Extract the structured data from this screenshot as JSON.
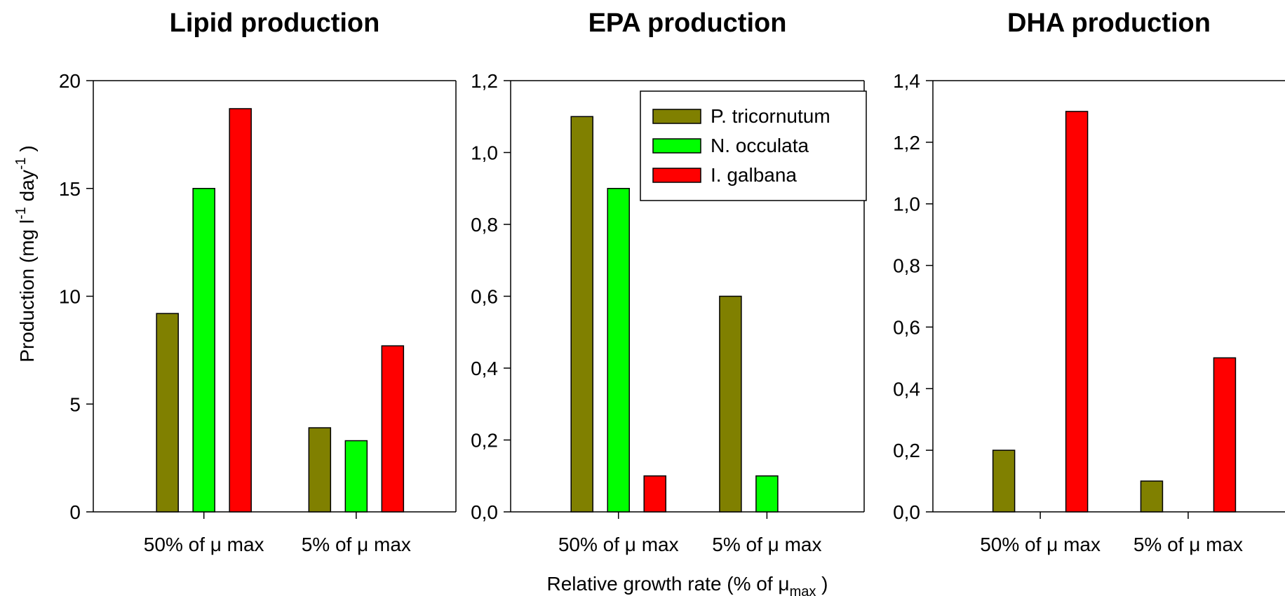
{
  "axis_labels": {
    "ylabel_prefix": "Production (mg l",
    "ylabel_sup1": "-1",
    "ylabel_mid": " day",
    "ylabel_sup2": "-1",
    "ylabel_suffix": " )",
    "xlabel_prefix": "Relative growth rate (% of μ",
    "xlabel_sub": "max",
    "xlabel_suffix": " )"
  },
  "legend": {
    "placement": "top-right of middle panel",
    "entries": [
      "P. tricornutum",
      "N. occulata",
      "I. galbana"
    ]
  },
  "colors": {
    "P. tricornutum": "#808000",
    "N. occulata": "#00ff00",
    "I. galbana": "#ff0000",
    "stroke": "#000000"
  },
  "chart_data": [
    {
      "type": "bar",
      "title": "Lipid production",
      "categories": [
        "50% of μ max",
        "5% of μ max"
      ],
      "series": [
        {
          "name": "P. tricornutum",
          "values": [
            9.2,
            3.9
          ]
        },
        {
          "name": "N. occulata",
          "values": [
            15.0,
            3.3
          ]
        },
        {
          "name": "I. galbana",
          "values": [
            18.7,
            7.7
          ]
        }
      ],
      "ylim": [
        0,
        20
      ],
      "yticks": [
        0,
        5,
        10,
        15,
        20
      ],
      "ytick_labels": [
        "0",
        "5",
        "10",
        "15",
        "20"
      ],
      "grid": false
    },
    {
      "type": "bar",
      "title": "EPA production",
      "categories": [
        "50% of μ max",
        "5% of μ max"
      ],
      "series": [
        {
          "name": "P. tricornutum",
          "values": [
            1.1,
            0.6
          ]
        },
        {
          "name": "N. occulata",
          "values": [
            0.9,
            0.1
          ]
        },
        {
          "name": "I. galbana",
          "values": [
            0.1,
            0
          ]
        }
      ],
      "ylim": [
        0,
        1.2
      ],
      "yticks": [
        0,
        0.2,
        0.4,
        0.6,
        0.8,
        1.0,
        1.2
      ],
      "ytick_labels": [
        "0,0",
        "0,2",
        "0,4",
        "0,6",
        "0,8",
        "1,0",
        "1,2"
      ],
      "grid": false
    },
    {
      "type": "bar",
      "title": "DHA production",
      "categories": [
        "50% of μ max",
        "5% of μ max"
      ],
      "series": [
        {
          "name": "P. tricornutum",
          "values": [
            0.2,
            0.1
          ]
        },
        {
          "name": "N. occulata",
          "values": [
            0,
            0
          ]
        },
        {
          "name": "I. galbana",
          "values": [
            1.3,
            0.5
          ]
        }
      ],
      "ylim": [
        0,
        1.4
      ],
      "yticks": [
        0,
        0.2,
        0.4,
        0.6,
        0.8,
        1.0,
        1.2,
        1.4
      ],
      "ytick_labels": [
        "0,0",
        "0,2",
        "0,4",
        "0,6",
        "0,8",
        "1,0",
        "1,2",
        "1,4"
      ],
      "grid": false
    }
  ]
}
